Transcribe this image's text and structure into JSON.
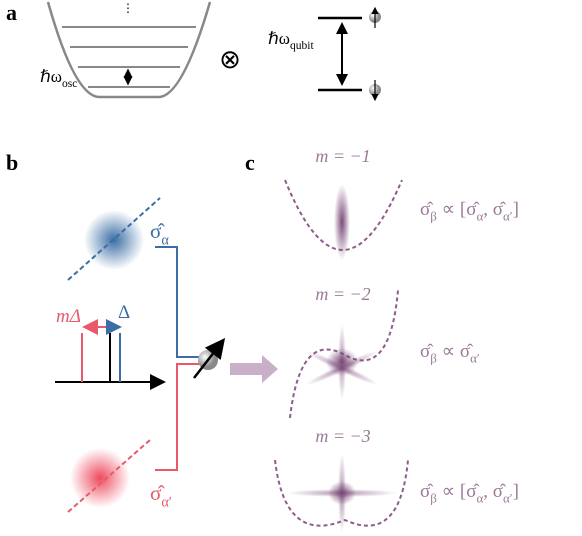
{
  "panel_labels": [
    "a",
    "b",
    "c"
  ],
  "panel_a": {
    "oscillator_label": [
      "ℏω",
      "osc"
    ],
    "tensor_symbol": "⊗",
    "qubit_label": [
      "ℏω",
      "qubit"
    ]
  },
  "panel_b": {
    "sigma_alpha": [
      "σ̂",
      "α"
    ],
    "sigma_alpha_prime": [
      "σ̂",
      "α′"
    ],
    "detuning_m": "mΔ",
    "detuning": "Δ"
  },
  "panel_c": {
    "rows": [
      {
        "m_label": "m = −1",
        "relation": [
          "σ̂",
          "β",
          " ∝ [σ̂",
          "α",
          ", σ̂",
          "α′",
          "]"
        ]
      },
      {
        "m_label": "m = −2",
        "relation": [
          "σ̂",
          "β",
          " ∝ σ̂",
          "α′"
        ]
      },
      {
        "m_label": "m = −3",
        "relation": [
          "σ̂",
          "β",
          " ∝ [σ̂",
          "α",
          ", σ̂",
          "α′",
          "]"
        ]
      }
    ]
  }
}
